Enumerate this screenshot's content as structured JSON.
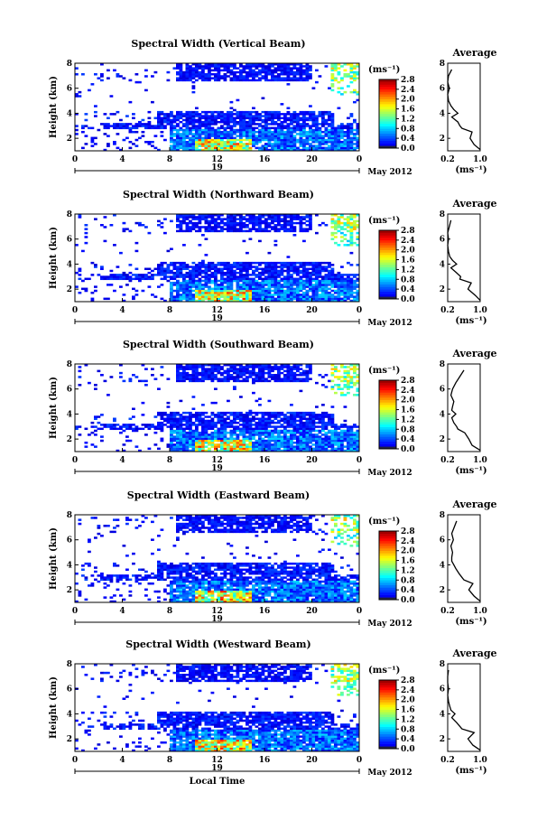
{
  "chart_data": [
    {
      "type": "heatmap",
      "title": "Spectral Width (Vertical Beam)",
      "ylabel": "Height (km)",
      "x_ticks": [
        "0",
        "4",
        "8",
        "12",
        "16",
        "20",
        "0"
      ],
      "y_ticks": [
        "2",
        "4",
        "6",
        "8"
      ],
      "xlim": [
        0,
        24
      ],
      "ylim": [
        1,
        8
      ],
      "date_label": "19",
      "month_label": "May 2012",
      "colorbar": {
        "unit": "(ms⁻¹)",
        "ticks": [
          "2.8",
          "2.4",
          "2.0",
          "1.6",
          "1.2",
          "0.8",
          "0.4",
          "0.0"
        ],
        "range": [
          0,
          2.8
        ]
      },
      "profile": {
        "title": "Average",
        "x_ticks": [
          "0.2",
          "1.0"
        ],
        "xlim": [
          0.2,
          1.0
        ],
        "y_ticks": [
          "2",
          "4",
          "6",
          "8"
        ],
        "ylim": [
          1,
          8
        ],
        "xlabel": "(ms⁻¹)",
        "height": [
          1.1,
          1.5,
          2.0,
          2.5,
          2.8,
          3.0,
          3.3,
          3.7,
          4.0,
          4.3,
          4.6,
          5.0,
          5.5,
          6.0,
          6.5,
          7.0,
          7.5
        ],
        "value": [
          1.0,
          0.85,
          0.75,
          0.8,
          0.55,
          0.5,
          0.45,
          0.3,
          0.45,
          0.35,
          0.28,
          0.22,
          0.2,
          0.24,
          0.2,
          0.22,
          0.3
        ]
      }
    },
    {
      "type": "heatmap",
      "title": "Spectral Width (Northward Beam)",
      "ylabel": "Height (km)",
      "x_ticks": [
        "0",
        "4",
        "8",
        "12",
        "16",
        "20",
        "0"
      ],
      "y_ticks": [
        "2",
        "4",
        "6",
        "8"
      ],
      "xlim": [
        0,
        24
      ],
      "ylim": [
        1,
        8
      ],
      "date_label": "19",
      "month_label": "May 2012",
      "colorbar": {
        "unit": "(ms⁻¹)",
        "ticks": [
          "2.8",
          "2.4",
          "2.0",
          "1.6",
          "1.2",
          "0.8",
          "0.4",
          "0.0"
        ],
        "range": [
          0,
          2.8
        ]
      },
      "profile": {
        "title": "Average",
        "x_ticks": [
          "0.2",
          "1.0"
        ],
        "xlim": [
          0.2,
          1.0
        ],
        "y_ticks": [
          "2",
          "4",
          "6",
          "8"
        ],
        "ylim": [
          1,
          8
        ],
        "xlabel": "(ms⁻¹)",
        "height": [
          1.1,
          1.5,
          2.0,
          2.5,
          2.8,
          3.0,
          3.3,
          3.7,
          4.0,
          4.3,
          4.6,
          5.0,
          5.5,
          6.0,
          6.5,
          7.0,
          7.5
        ],
        "value": [
          1.0,
          0.88,
          0.7,
          0.78,
          0.5,
          0.52,
          0.42,
          0.28,
          0.42,
          0.32,
          0.25,
          0.22,
          0.2,
          0.22,
          0.2,
          0.24,
          0.28
        ]
      }
    },
    {
      "type": "heatmap",
      "title": "Spectral Width (Southward Beam)",
      "ylabel": "Height (km)",
      "x_ticks": [
        "0",
        "4",
        "8",
        "12",
        "16",
        "20",
        "0"
      ],
      "y_ticks": [
        "2",
        "4",
        "6",
        "8"
      ],
      "xlim": [
        0,
        24
      ],
      "ylim": [
        1,
        8
      ],
      "date_label": "19",
      "month_label": "May 2012",
      "colorbar": {
        "unit": "(ms⁻¹)",
        "ticks": [
          "2.8",
          "2.4",
          "2.0",
          "1.6",
          "1.2",
          "0.8",
          "0.4",
          "0.0"
        ],
        "range": [
          0,
          2.8
        ]
      },
      "profile": {
        "title": "Average",
        "x_ticks": [
          "0.2",
          "1.0"
        ],
        "xlim": [
          0.2,
          1.0
        ],
        "y_ticks": [
          "2",
          "4",
          "6",
          "8"
        ],
        "ylim": [
          1,
          8
        ],
        "xlabel": "(ms⁻¹)",
        "height": [
          1.1,
          1.5,
          2.0,
          2.5,
          2.8,
          3.0,
          3.3,
          3.7,
          4.0,
          4.3,
          4.6,
          5.0,
          5.5,
          6.0,
          6.5,
          7.0,
          7.5
        ],
        "value": [
          1.0,
          0.8,
          0.72,
          0.62,
          0.45,
          0.42,
          0.35,
          0.3,
          0.4,
          0.3,
          0.32,
          0.35,
          0.28,
          0.32,
          0.4,
          0.5,
          0.6
        ]
      }
    },
    {
      "type": "heatmap",
      "title": "Spectral Width (Eastward Beam)",
      "ylabel": "Height (km)",
      "x_ticks": [
        "0",
        "4",
        "8",
        "12",
        "16",
        "20",
        "0"
      ],
      "y_ticks": [
        "2",
        "4",
        "6",
        "8"
      ],
      "xlim": [
        0,
        24
      ],
      "ylim": [
        1,
        8
      ],
      "date_label": "19",
      "month_label": "May 2012",
      "colorbar": {
        "unit": "(ms⁻¹)",
        "ticks": [
          "2.8",
          "2.4",
          "2.0",
          "1.6",
          "1.2",
          "0.8",
          "0.4",
          "0.0"
        ],
        "range": [
          0,
          2.8
        ]
      },
      "profile": {
        "title": "Average",
        "x_ticks": [
          "0.2",
          "1.0"
        ],
        "xlim": [
          0.2,
          1.0
        ],
        "y_ticks": [
          "2",
          "4",
          "6",
          "8"
        ],
        "ylim": [
          1,
          8
        ],
        "xlabel": "(ms⁻¹)",
        "height": [
          1.1,
          1.5,
          2.0,
          2.5,
          2.8,
          3.0,
          3.3,
          3.7,
          4.0,
          4.3,
          4.6,
          5.0,
          5.5,
          6.0,
          6.5,
          7.0,
          7.5
        ],
        "value": [
          1.0,
          0.85,
          0.72,
          0.82,
          0.6,
          0.55,
          0.48,
          0.4,
          0.35,
          0.3,
          0.3,
          0.32,
          0.28,
          0.34,
          0.3,
          0.36,
          0.42
        ]
      }
    },
    {
      "type": "heatmap",
      "title": "Spectral Width (Westward Beam)",
      "ylabel": "Height (km)",
      "xlabel": "Local Time",
      "x_ticks": [
        "0",
        "4",
        "8",
        "12",
        "16",
        "20",
        "0"
      ],
      "y_ticks": [
        "2",
        "4",
        "6",
        "8"
      ],
      "xlim": [
        0,
        24
      ],
      "ylim": [
        1,
        8
      ],
      "date_label": "19",
      "month_label": "May 2012",
      "colorbar": {
        "unit": "(ms⁻¹)",
        "ticks": [
          "2.8",
          "2.4",
          "2.0",
          "1.6",
          "1.2",
          "0.8",
          "0.4",
          "0.0"
        ],
        "range": [
          0,
          2.8
        ]
      },
      "profile": {
        "title": "Average",
        "x_ticks": [
          "0.2",
          "1.0"
        ],
        "xlim": [
          0.2,
          1.0
        ],
        "y_ticks": [
          "2",
          "4",
          "6",
          "8"
        ],
        "ylim": [
          1,
          8
        ],
        "xlabel": "(ms⁻¹)",
        "height": [
          1.1,
          1.5,
          2.0,
          2.5,
          2.8,
          3.0,
          3.3,
          3.7,
          4.0,
          4.3,
          4.6,
          5.0,
          5.5,
          6.0,
          6.5,
          7.0,
          7.5
        ],
        "value": [
          1.0,
          0.82,
          0.7,
          0.85,
          0.55,
          0.5,
          0.42,
          0.3,
          0.38,
          0.28,
          0.25,
          0.22,
          0.2,
          0.22,
          0.2,
          0.2,
          0.22
        ]
      }
    }
  ]
}
